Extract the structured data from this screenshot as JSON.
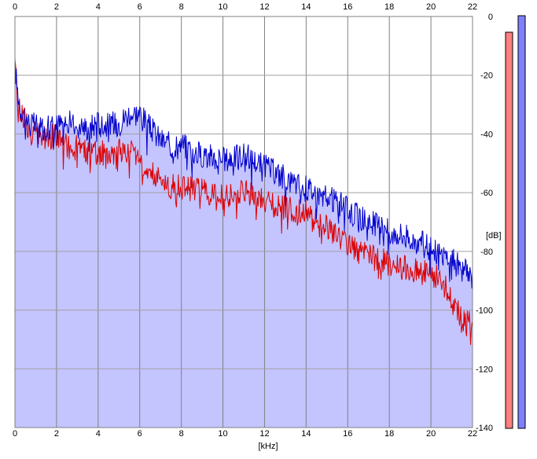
{
  "chart_data": {
    "type": "line",
    "title": "",
    "xlabel": "[kHz]",
    "ylabel": "[dB]",
    "xlim": [
      0,
      22
    ],
    "ylim": [
      -140,
      0
    ],
    "x_ticks": [
      "0",
      "2",
      "4",
      "6",
      "8",
      "10",
      "12",
      "14",
      "16",
      "18",
      "20",
      "22"
    ],
    "y_ticks": [
      "0",
      "-20",
      "-40",
      "-60",
      "-80",
      "-100",
      "-120",
      "-140"
    ],
    "grid": true,
    "fill_under_max": true,
    "series": [
      {
        "color": "#0000cc",
        "x": [
          0,
          0.1,
          0.25,
          0.5,
          0.75,
          1,
          1.5,
          2,
          2.5,
          3,
          3.5,
          4,
          4.5,
          5,
          5.5,
          6,
          6.5,
          7,
          7.5,
          8,
          8.5,
          9,
          9.5,
          10,
          10.5,
          11,
          11.5,
          12,
          12.5,
          13,
          13.5,
          14,
          14.5,
          15,
          15.5,
          16,
          16.5,
          17,
          17.5,
          18,
          18.5,
          19,
          19.5,
          20,
          20.5,
          21,
          21.5,
          22
        ],
        "values": [
          -17,
          -24,
          -31,
          -34,
          -37,
          -37,
          -38,
          -37,
          -36,
          -37,
          -38,
          -36,
          -37,
          -36,
          -33,
          -33,
          -38,
          -42,
          -44,
          -43,
          -46,
          -47,
          -48,
          -49,
          -48,
          -47,
          -49,
          -51,
          -53,
          -55,
          -57,
          -58,
          -60,
          -62,
          -63,
          -66,
          -68,
          -70,
          -71,
          -73,
          -74,
          -75,
          -77,
          -79,
          -81,
          -83,
          -86,
          -89
        ]
      },
      {
        "color": "#dd0000",
        "x": [
          0,
          0.1,
          0.25,
          0.5,
          0.75,
          1,
          1.5,
          2,
          2.5,
          3,
          3.5,
          4,
          4.5,
          5,
          5.5,
          6,
          6.5,
          7,
          7.5,
          8,
          8.5,
          9,
          9.5,
          10,
          10.5,
          11,
          11.5,
          12,
          12.5,
          13,
          13.5,
          14,
          14.5,
          15,
          15.5,
          16,
          16.5,
          17,
          17.5,
          18,
          18.5,
          19,
          19.5,
          20,
          20.5,
          21,
          21.5,
          22
        ],
        "values": [
          -18,
          -26,
          -32,
          -35,
          -40,
          -40,
          -41,
          -41,
          -44,
          -45,
          -46,
          -47,
          -46,
          -46,
          -45,
          -48,
          -52,
          -56,
          -58,
          -58,
          -58,
          -59,
          -60,
          -61,
          -61,
          -60,
          -61,
          -63,
          -64,
          -65,
          -66,
          -67,
          -70,
          -72,
          -74,
          -77,
          -80,
          -82,
          -83,
          -84,
          -85,
          -86,
          -87,
          -88,
          -90,
          -95,
          -103,
          -104
        ]
      }
    ],
    "meters": [
      {
        "color": "#ff8080",
        "level": 0.96
      },
      {
        "color": "#8080ff",
        "level": 1.0
      }
    ]
  }
}
